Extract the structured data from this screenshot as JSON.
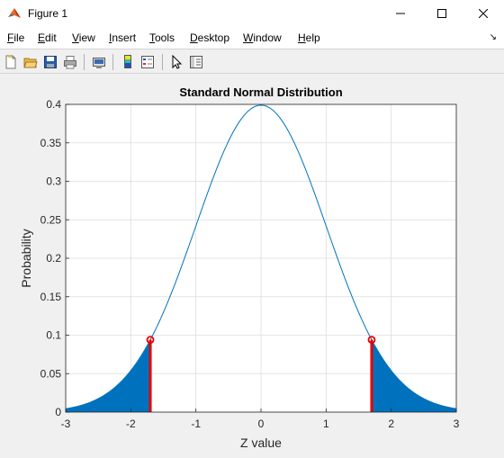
{
  "window": {
    "title": "Figure 1"
  },
  "menu": {
    "items": [
      "File",
      "Edit",
      "View",
      "Insert",
      "Tools",
      "Desktop",
      "Window",
      "Help"
    ]
  },
  "toolbar": {
    "icons": [
      "new-figure-icon",
      "open-file-icon",
      "save-icon",
      "print-icon",
      "print-preview-icon",
      "colorbar-icon",
      "legend-icon",
      "pointer-icon",
      "property-editor-icon"
    ]
  },
  "colors": {
    "curve": "#0072bd",
    "marker": "#e60000",
    "grid": "#dcdcdc"
  },
  "chart_data": {
    "type": "area",
    "title": "Standard Normal Distribution",
    "xlabel": "Z value",
    "ylabel": "Probability",
    "xlim": [
      -3,
      3
    ],
    "ylim": [
      0,
      0.4
    ],
    "xticks": [
      "-3",
      "-2",
      "-1",
      "0",
      "1",
      "2",
      "3"
    ],
    "yticks": [
      "0",
      "0.05",
      "0.1",
      "0.15",
      "0.2",
      "0.25",
      "0.3",
      "0.35",
      "0.4"
    ],
    "grid": true,
    "series": [
      {
        "kind": "line",
        "function": "standard-normal-pdf"
      },
      {
        "kind": "shaded-tail",
        "x_range": [
          -3,
          -1.7
        ]
      },
      {
        "kind": "shaded-tail",
        "x_range": [
          1.7,
          3
        ]
      }
    ],
    "critical_lines": [
      {
        "x": -1.7,
        "y": 0.094
      },
      {
        "x": 1.7,
        "y": 0.094
      }
    ]
  }
}
